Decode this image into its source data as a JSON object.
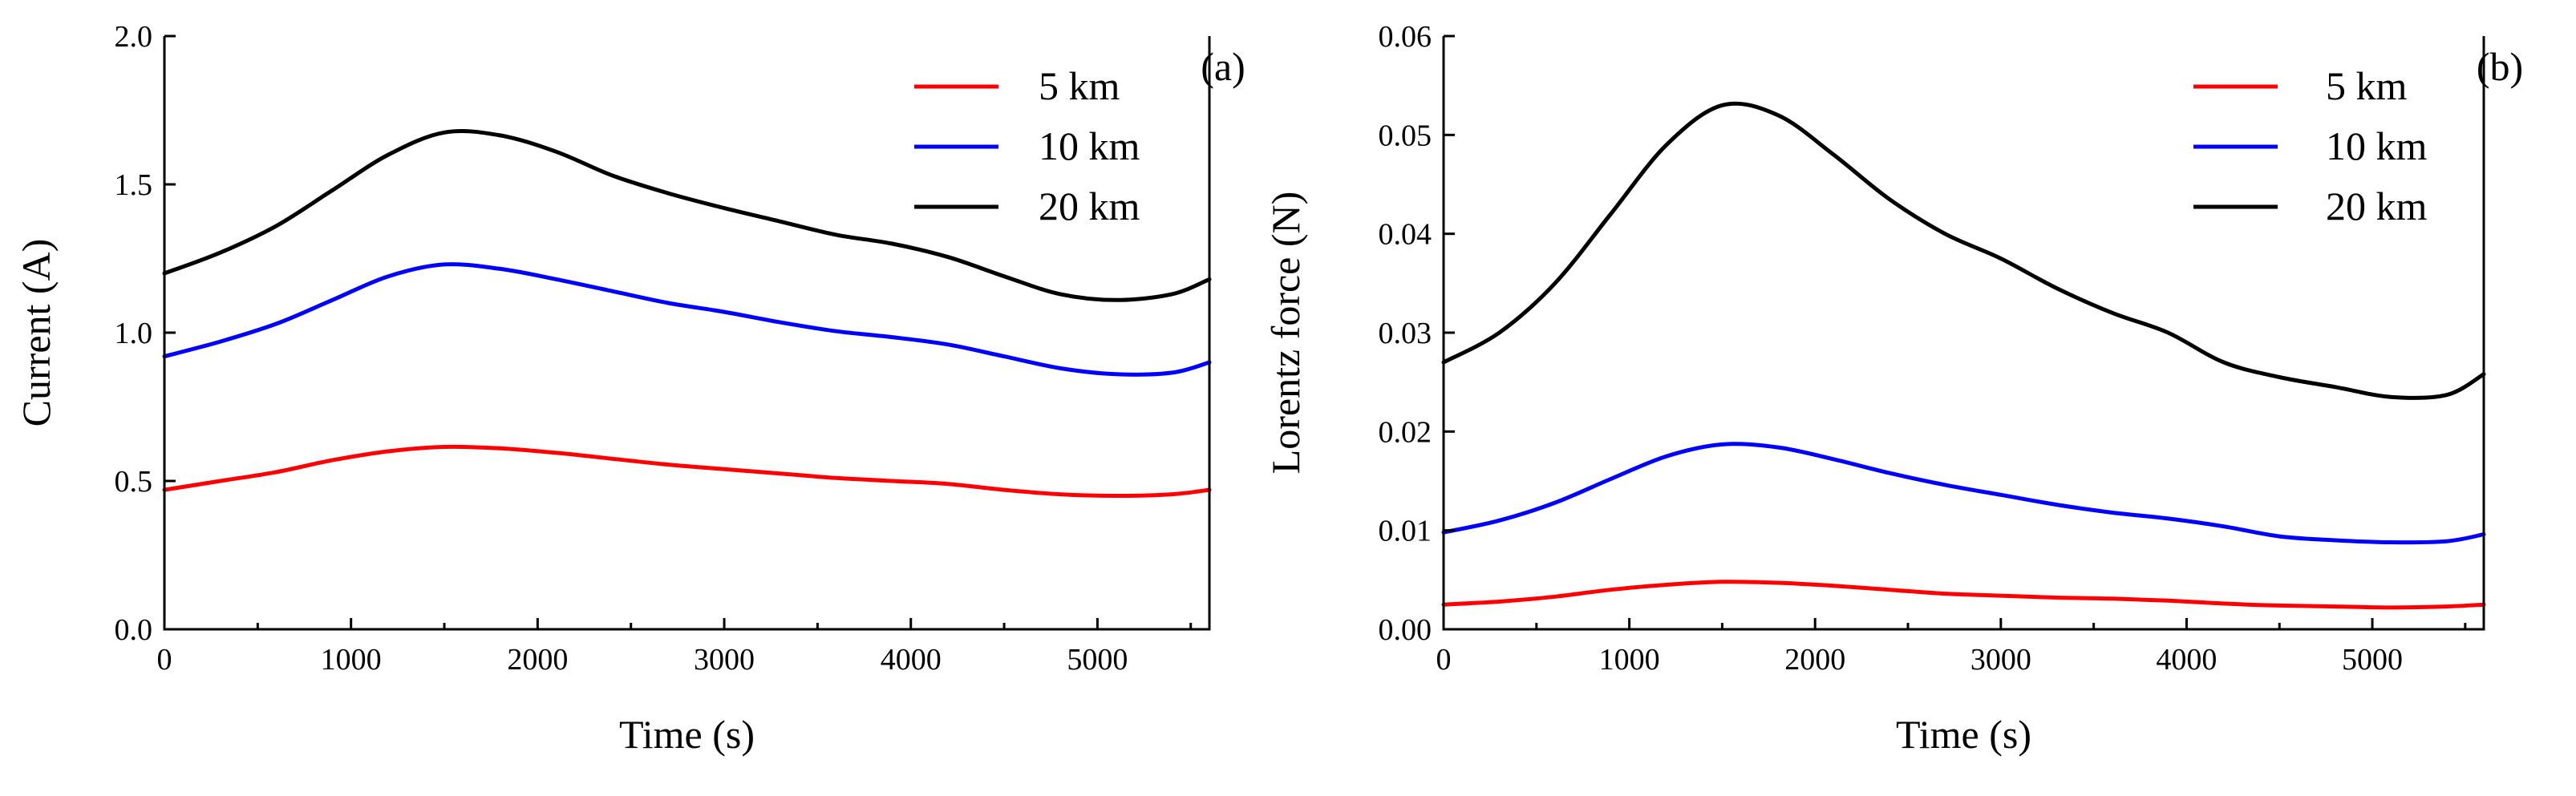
{
  "chart_data": [
    {
      "type": "line",
      "panel_label": "(a)",
      "xlabel": "Time (s)",
      "ylabel": "Current (A)",
      "xlim": [
        0,
        5600
      ],
      "ylim": [
        0,
        2.0
      ],
      "xticks": [
        0,
        1000,
        2000,
        3000,
        4000,
        5000
      ],
      "xtick_labels": [
        "0",
        "1000",
        "2000",
        "3000",
        "4000",
        "5000"
      ],
      "yticks": [
        0,
        0.5,
        1.0,
        1.5,
        2.0
      ],
      "ytick_labels": [
        "0.0",
        "0.5",
        "1.0",
        "1.5",
        "2.0"
      ],
      "legend_position": "top-right",
      "grid": false,
      "series": [
        {
          "name": "5 km",
          "color": "#ff0000",
          "x": [
            0,
            300,
            600,
            900,
            1200,
            1500,
            1800,
            2100,
            2400,
            2700,
            3000,
            3300,
            3600,
            3900,
            4200,
            4500,
            4800,
            5100,
            5400,
            5600
          ],
          "y": [
            0.47,
            0.5,
            0.53,
            0.57,
            0.6,
            0.615,
            0.61,
            0.595,
            0.575,
            0.555,
            0.54,
            0.525,
            0.51,
            0.5,
            0.49,
            0.47,
            0.455,
            0.45,
            0.455,
            0.47
          ]
        },
        {
          "name": "10 km",
          "color": "#0000ff",
          "x": [
            0,
            300,
            600,
            900,
            1200,
            1500,
            1800,
            2100,
            2400,
            2700,
            3000,
            3300,
            3600,
            3900,
            4200,
            4500,
            4800,
            5100,
            5400,
            5600
          ],
          "y": [
            0.92,
            0.97,
            1.03,
            1.11,
            1.19,
            1.23,
            1.215,
            1.18,
            1.14,
            1.1,
            1.07,
            1.035,
            1.005,
            0.985,
            0.96,
            0.92,
            0.88,
            0.86,
            0.865,
            0.9
          ]
        },
        {
          "name": "20 km",
          "color": "#000000",
          "x": [
            0,
            300,
            600,
            900,
            1200,
            1500,
            1800,
            2100,
            2400,
            2700,
            3000,
            3300,
            3600,
            3900,
            4200,
            4500,
            4800,
            5100,
            5400,
            5600
          ],
          "y": [
            1.2,
            1.27,
            1.36,
            1.48,
            1.6,
            1.675,
            1.665,
            1.61,
            1.53,
            1.47,
            1.42,
            1.375,
            1.33,
            1.3,
            1.255,
            1.19,
            1.13,
            1.11,
            1.13,
            1.18
          ]
        }
      ]
    },
    {
      "type": "line",
      "panel_label": "(b)",
      "xlabel": "Time (s)",
      "ylabel": "Lorentz force (N)",
      "xlim": [
        0,
        5600
      ],
      "ylim": [
        0,
        0.06
      ],
      "xticks": [
        0,
        1000,
        2000,
        3000,
        4000,
        5000
      ],
      "xtick_labels": [
        "0",
        "1000",
        "2000",
        "3000",
        "4000",
        "5000"
      ],
      "yticks": [
        0,
        0.01,
        0.02,
        0.03,
        0.04,
        0.05,
        0.06
      ],
      "ytick_labels": [
        "0.00",
        "0.01",
        "0.02",
        "0.03",
        "0.04",
        "0.05",
        "0.06"
      ],
      "legend_position": "top-right",
      "grid": false,
      "series": [
        {
          "name": "5 km",
          "color": "#ff0000",
          "x": [
            0,
            300,
            600,
            900,
            1200,
            1500,
            1800,
            2100,
            2400,
            2700,
            3000,
            3300,
            3600,
            3900,
            4200,
            4500,
            4800,
            5100,
            5400,
            5600
          ],
          "y": [
            0.0025,
            0.0028,
            0.0033,
            0.004,
            0.0045,
            0.0048,
            0.0047,
            0.0044,
            0.004,
            0.0036,
            0.0034,
            0.0032,
            0.0031,
            0.0029,
            0.0026,
            0.0024,
            0.0023,
            0.0022,
            0.0023,
            0.0025
          ]
        },
        {
          "name": "10 km",
          "color": "#0000ff",
          "x": [
            0,
            300,
            600,
            900,
            1200,
            1500,
            1800,
            2100,
            2400,
            2700,
            3000,
            3300,
            3600,
            3900,
            4200,
            4500,
            4800,
            5100,
            5400,
            5600
          ],
          "y": [
            0.0098,
            0.011,
            0.0128,
            0.0152,
            0.0175,
            0.0187,
            0.0184,
            0.0172,
            0.0158,
            0.0146,
            0.0136,
            0.0126,
            0.0118,
            0.0112,
            0.0104,
            0.0094,
            0.009,
            0.0088,
            0.0089,
            0.0096
          ]
        },
        {
          "name": "20 km",
          "color": "#000000",
          "x": [
            0,
            300,
            600,
            900,
            1200,
            1500,
            1800,
            2100,
            2400,
            2700,
            3000,
            3300,
            3600,
            3900,
            4200,
            4500,
            4800,
            5100,
            5400,
            5600
          ],
          "y": [
            0.027,
            0.03,
            0.035,
            0.042,
            0.049,
            0.053,
            0.052,
            0.048,
            0.0435,
            0.04,
            0.0375,
            0.0345,
            0.032,
            0.03,
            0.027,
            0.0255,
            0.0245,
            0.0235,
            0.0237,
            0.0258
          ]
        }
      ]
    }
  ]
}
